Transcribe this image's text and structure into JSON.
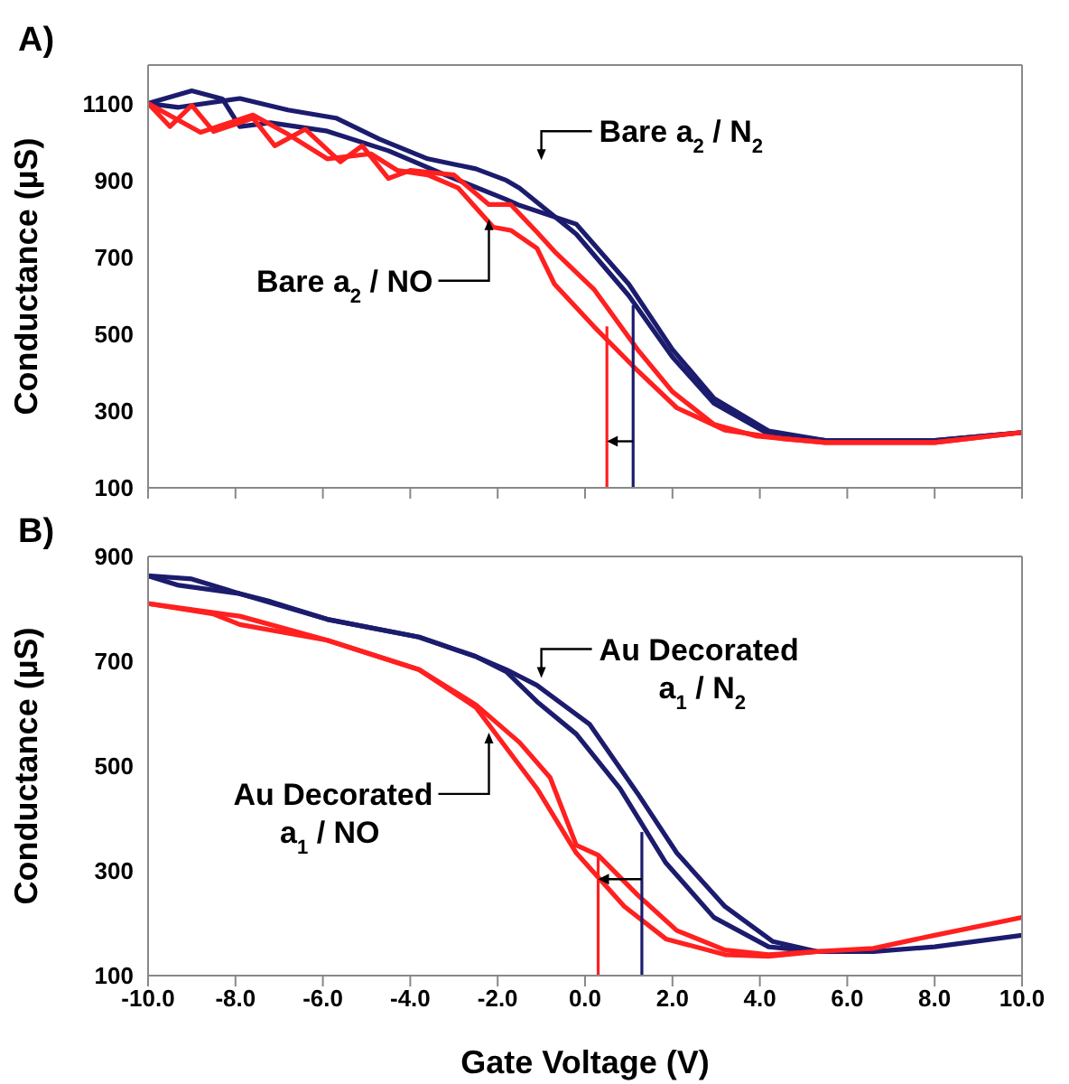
{
  "chart_data": [
    {
      "type": "line",
      "title": "A)",
      "ylabel": "Conductance (µS)",
      "xlim": [
        -10,
        10
      ],
      "xticks": [
        -10,
        -8,
        -6,
        -4,
        -2,
        0,
        2,
        4,
        6,
        8,
        10
      ],
      "ylim": [
        100,
        1200
      ],
      "yticks": [
        100,
        300,
        500,
        700,
        900,
        1100
      ],
      "tick_labels": "y",
      "grid": false,
      "annotations": [
        "Bare a$_{2}$ / N$_{2}$",
        "Bare a$_{2}$ / NO"
      ],
      "series": [
        {
          "color": "#1c1c6e",
          "x": [
            -10,
            -9.0,
            -8.3,
            -7.9,
            -7.2,
            -5.9,
            -4.5,
            -3.2,
            -1.8,
            -1.5,
            -0.2,
            1.0,
            2.0,
            2.95,
            4.2,
            5.5,
            8.0,
            10
          ],
          "values": [
            1100,
            1133,
            1112,
            1040,
            1050,
            1028,
            977,
            914,
            850,
            835,
            786,
            630,
            460,
            333,
            248,
            223,
            223,
            244
          ]
        },
        {
          "color": "#1c1c6e",
          "x": [
            -10,
            -9.3,
            -7.9,
            -6.8,
            -5.7,
            -4.7,
            -3.6,
            -2.5,
            -1.8,
            -1.5,
            -0.2,
            1.0,
            2.0,
            2.95,
            4.2,
            5.5,
            8.0,
            10
          ],
          "values": [
            1100,
            1090,
            1113,
            1083,
            1062,
            1007,
            956,
            930,
            900,
            880,
            760,
            600,
            440,
            320,
            240,
            223,
            223,
            244
          ]
        },
        {
          "color": "#ff2020",
          "x": [
            -10,
            -9.5,
            -9.0,
            -8.5,
            -7.6,
            -7.1,
            -6.4,
            -5.6,
            -5.1,
            -4.5,
            -4.0,
            -3.0,
            -2.2,
            -1.7,
            -1.1,
            -0.7,
            0.2,
            1.2,
            2.0,
            2.95,
            3.9,
            5.5,
            8.0,
            10
          ],
          "values": [
            1100,
            1040,
            1095,
            1027,
            1062,
            990,
            1033,
            948,
            990,
            905,
            926,
            914,
            837,
            837,
            765,
            715,
            617,
            460,
            350,
            265,
            235,
            218,
            218,
            244
          ]
        },
        {
          "color": "#ff2020",
          "x": [
            -10,
            -8.8,
            -7.6,
            -6.8,
            -5.9,
            -4.9,
            -4.3,
            -3.6,
            -2.9,
            -2.1,
            -1.7,
            -1.1,
            -0.7,
            0.2,
            1.2,
            2.1,
            3.2,
            4.5,
            5.5,
            8.0,
            10
          ],
          "values": [
            1100,
            1025,
            1070,
            1020,
            956,
            969,
            926,
            914,
            880,
            778,
            770,
            723,
            630,
            520,
            405,
            308,
            250,
            228,
            218,
            218,
            244
          ]
        },
        {
          "color": "#ff2020",
          "x": [
            0.5,
            0.5
          ],
          "values": [
            100,
            520
          ]
        },
        {
          "color": "#1c1c6e",
          "x": [
            1.1,
            1.1
          ],
          "values": [
            100,
            575
          ]
        }
      ]
    },
    {
      "type": "line",
      "title": "B)",
      "xlabel": "Gate Voltage (V)",
      "ylabel": "Conductance (µS)",
      "xlim": [
        -10,
        10
      ],
      "xticks": [
        {
          "value": -10,
          "label": "-10.0"
        },
        {
          "value": -8,
          "label": "-8.0"
        },
        {
          "value": -6,
          "label": "-6.0"
        },
        {
          "value": -4,
          "label": "-4.0"
        },
        {
          "value": -2,
          "label": "-2.0"
        },
        {
          "value": 0,
          "label": "0.0"
        },
        {
          "value": 2,
          "label": "2.0"
        },
        {
          "value": 4,
          "label": "4.0"
        },
        {
          "value": 6,
          "label": "6.0"
        },
        {
          "value": 8,
          "label": "8.0"
        },
        {
          "value": 10,
          "label": "10.0"
        }
      ],
      "ylim": [
        100,
        900
      ],
      "yticks": [
        100,
        300,
        500,
        700,
        900
      ],
      "grid": false,
      "annotations": [
        "Au Decorated\na$_{1}$ / N$_{2}$",
        "Au Decorated\na$_{1}$ / NO"
      ],
      "series": [
        {
          "color": "#1c1c6e",
          "x": [
            -10,
            -9.0,
            -7.9,
            -7.2,
            -5.9,
            -3.8,
            -2.5,
            -1.8,
            -1.1,
            0.1,
            1.2,
            2.1,
            3.2,
            4.3,
            5.3,
            6.6,
            8.0,
            10
          ],
          "values": [
            863,
            857,
            829,
            814,
            780,
            746,
            709,
            684,
            654,
            580,
            448,
            334,
            232,
            165,
            146,
            146,
            155,
            177
          ]
        },
        {
          "color": "#1c1c6e",
          "x": [
            -10,
            -9.3,
            -7.9,
            -5.9,
            -3.8,
            -2.5,
            -1.8,
            -1.1,
            -0.2,
            0.8,
            1.85,
            2.95,
            4.2,
            5.3
          ],
          "values": [
            863,
            845,
            829,
            780,
            746,
            709,
            680,
            623,
            561,
            457,
            315,
            211,
            155,
            146
          ]
        },
        {
          "color": "#ff2020",
          "x": [
            -10,
            -7.9,
            -5.9,
            -3.8,
            -2.5,
            -1.5,
            -0.8,
            -0.2,
            0.3,
            1.2,
            2.1,
            3.2,
            4.2,
            5.3,
            6.6,
            8.0,
            10
          ],
          "values": [
            810,
            786,
            740,
            684,
            617,
            545,
            478,
            349,
            330,
            254,
            186,
            149,
            140,
            146,
            152,
            177,
            211
          ]
        },
        {
          "color": "#ff2020",
          "x": [
            -10,
            -8.5,
            -7.9,
            -5.9,
            -3.8,
            -2.5,
            -1.1,
            -0.2,
            0.9,
            1.85,
            3.2,
            4.2,
            5.3
          ],
          "values": [
            810,
            790,
            770,
            740,
            684,
            612,
            457,
            334,
            232,
            170,
            140,
            137,
            146
          ]
        },
        {
          "color": "#ff2020",
          "x": [
            0.3,
            0.3
          ],
          "values": [
            100,
            328
          ]
        },
        {
          "color": "#1c1c6e",
          "x": [
            1.3,
            1.3
          ],
          "values": [
            100,
            374
          ]
        }
      ]
    }
  ]
}
